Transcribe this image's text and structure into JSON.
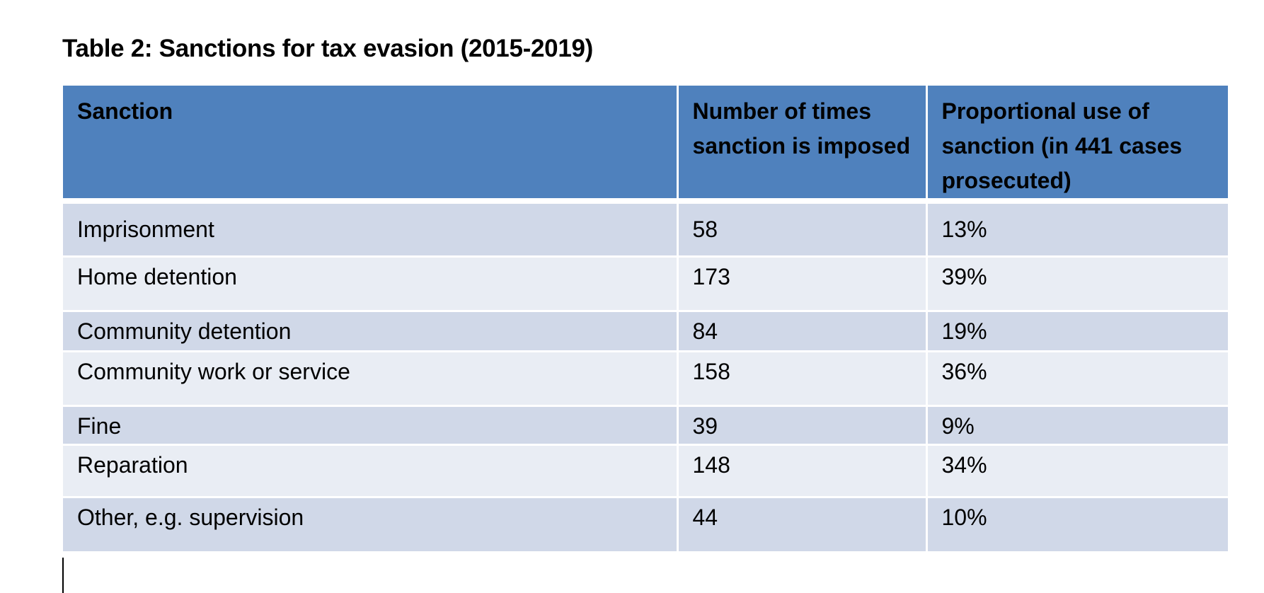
{
  "document": {
    "caption": "Table 2: Sanctions for tax evasion (2015-2019)",
    "table": {
      "headers": [
        "Sanction",
        "Number of times sanction is imposed",
        "Proportional use of sanction (in 441 cases prosecuted)"
      ],
      "rows": [
        [
          "Imprisonment",
          "58",
          "13%"
        ],
        [
          "Home detention",
          "173",
          "39%"
        ],
        [
          "Community detention",
          "84",
          "19%"
        ],
        [
          "Community work or service",
          "158",
          "36%"
        ],
        [
          "Fine",
          "39",
          "9%"
        ],
        [
          "Reparation",
          "148",
          "34%"
        ],
        [
          "Other, e.g. supervision",
          "44",
          "10%"
        ]
      ]
    }
  },
  "colors": {
    "header_bg": "#4f81bd",
    "row_odd_bg": "#d0d8e8",
    "row_even_bg": "#e9edf4"
  }
}
